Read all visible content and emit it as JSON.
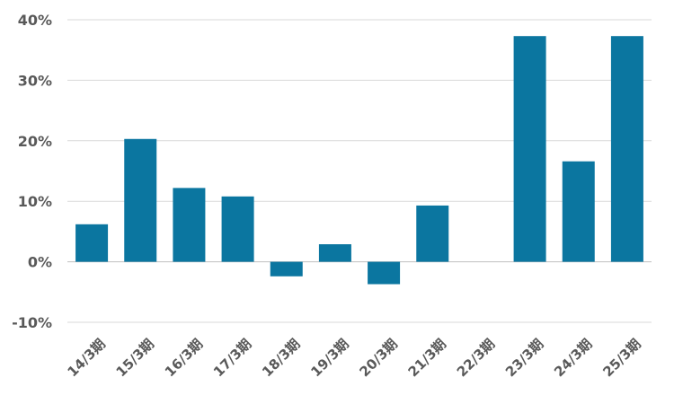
{
  "chart_data": {
    "type": "bar",
    "categories": [
      "14/3期",
      "15/3期",
      "16/3期",
      "17/3期",
      "18/3期",
      "19/3期",
      "20/3期",
      "21/3期",
      "22/3期",
      "23/3期",
      "24/3期",
      "25/3期"
    ],
    "values": [
      6.2,
      20.3,
      12.2,
      10.8,
      -2.4,
      2.9,
      -3.7,
      9.3,
      null,
      37.3,
      16.6,
      37.3
    ],
    "ylim": [
      -10,
      40
    ],
    "yticks": [
      -10,
      0,
      10,
      20,
      30,
      40
    ],
    "ytick_labels": [
      "-10%",
      "0%",
      "10%",
      "20%",
      "30%",
      "40%"
    ],
    "bar_color": "#0b76a0",
    "grid": true,
    "legend": "none",
    "title": "",
    "xlabel": "",
    "ylabel": ""
  }
}
